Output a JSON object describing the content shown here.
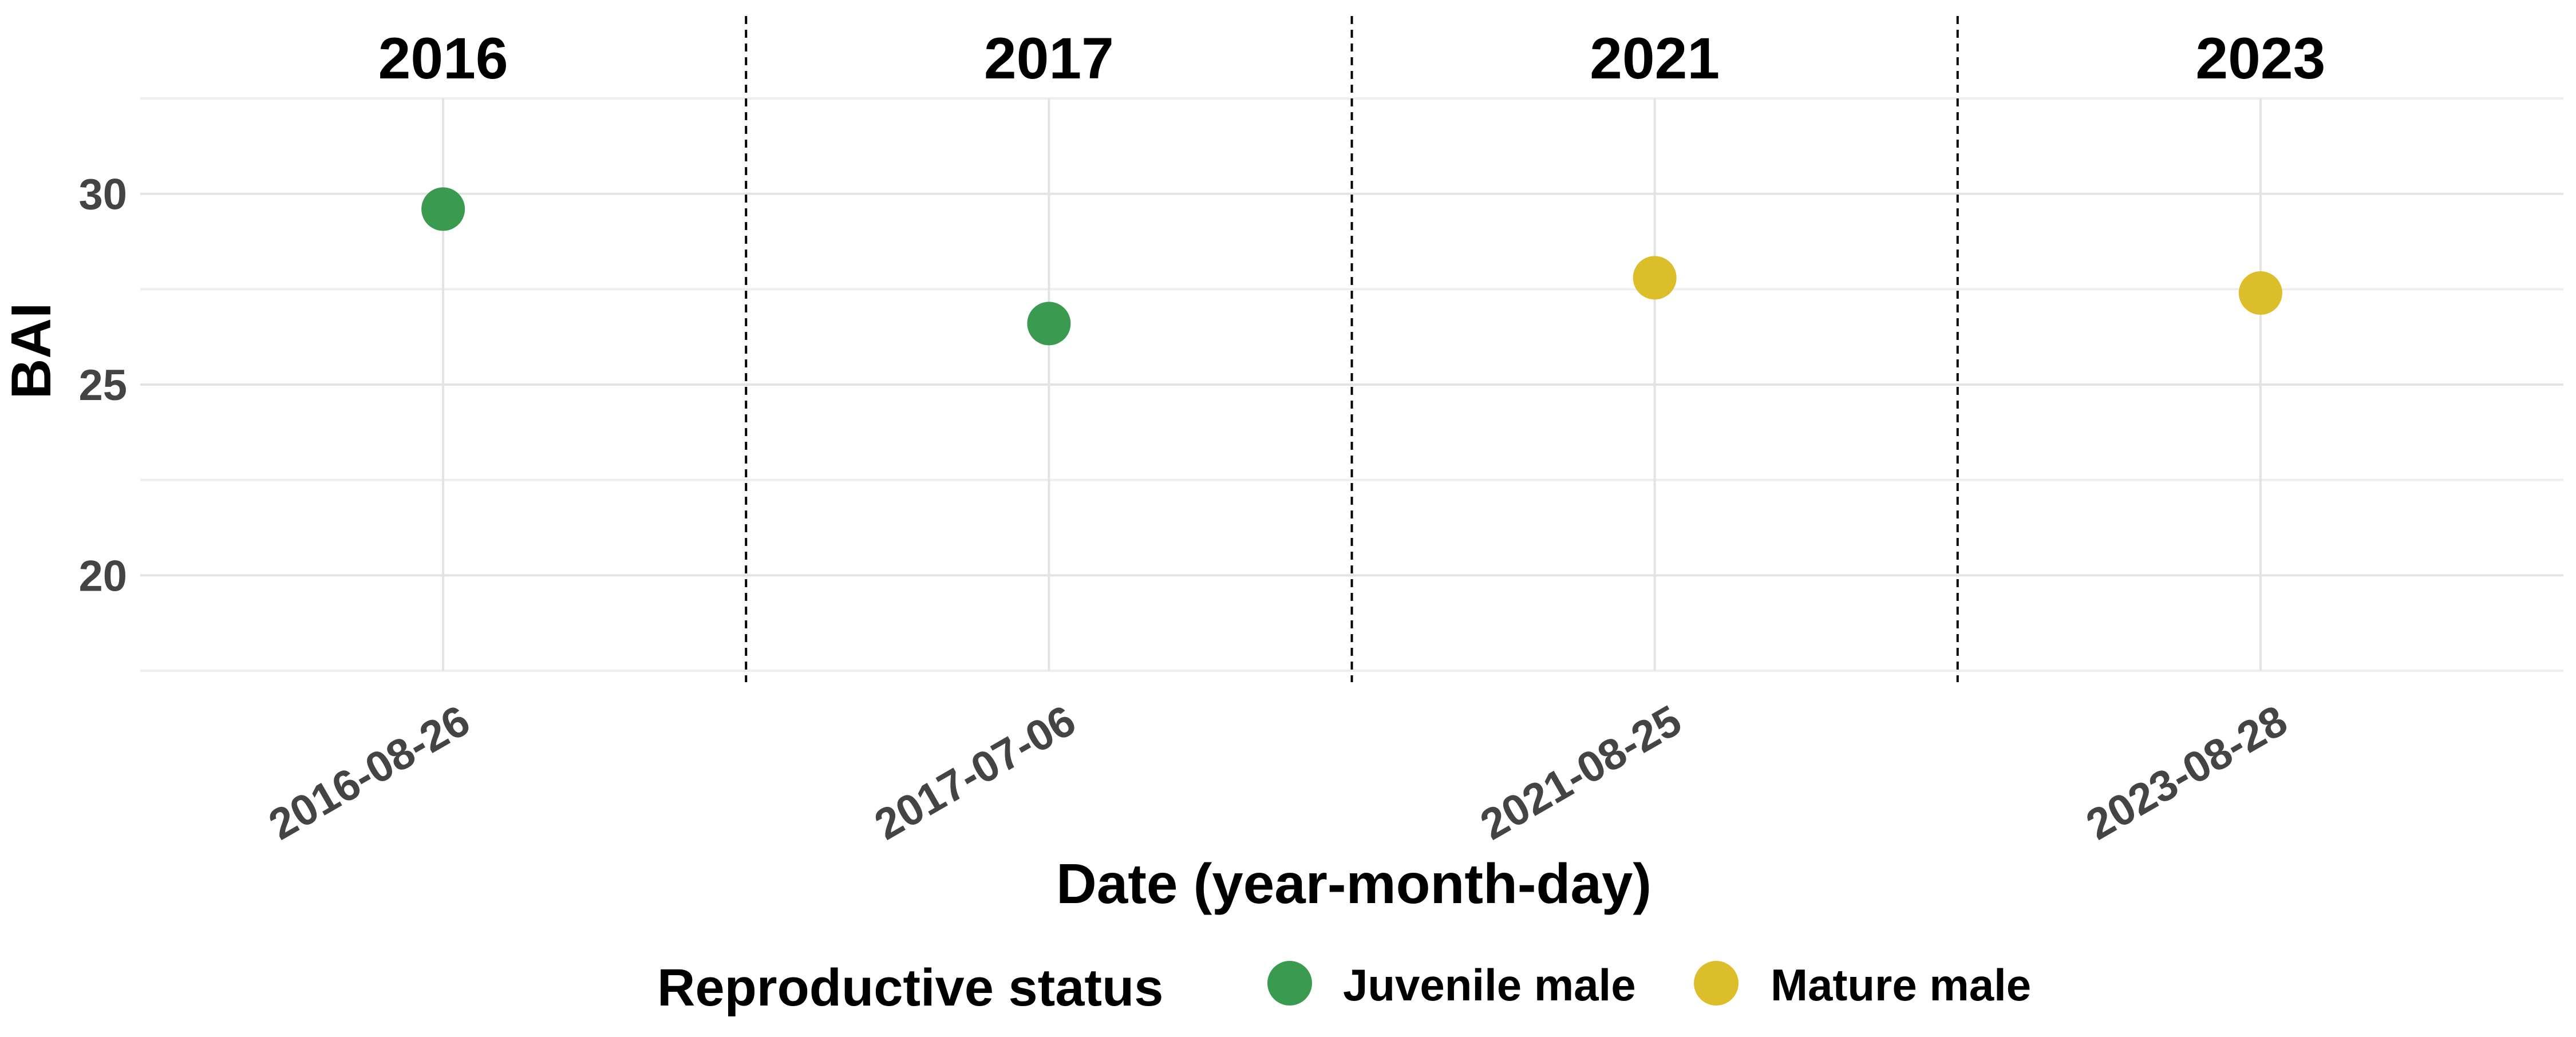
{
  "chart_data": {
    "type": "scatter",
    "title": "",
    "xlabel": "Date (year-month-day)",
    "ylabel": "BAI",
    "ylim": [
      17.5,
      32.5
    ],
    "yticks": [
      20,
      25,
      30
    ],
    "grid": true,
    "facet_titles": [
      "2016",
      "2017",
      "2021",
      "2023"
    ],
    "categories": [
      "2016-08-26",
      "2017-07-06",
      "2021-08-25",
      "2023-08-28"
    ],
    "points": [
      {
        "x": "2016-08-26",
        "y": 29.6,
        "status": "Juvenile male",
        "facet": "2016"
      },
      {
        "x": "2017-07-06",
        "y": 26.6,
        "status": "Juvenile male",
        "facet": "2017"
      },
      {
        "x": "2021-08-25",
        "y": 27.8,
        "status": "Mature male",
        "facet": "2021"
      },
      {
        "x": "2023-08-28",
        "y": 27.4,
        "status": "Mature male",
        "facet": "2023"
      }
    ],
    "legend": {
      "title": "Reproductive status",
      "position": "bottom",
      "entries": [
        {
          "label": "Juvenile male",
          "color": "#3a9a4f"
        },
        {
          "label": "Mature male",
          "color": "#dcbe2a"
        }
      ]
    }
  }
}
